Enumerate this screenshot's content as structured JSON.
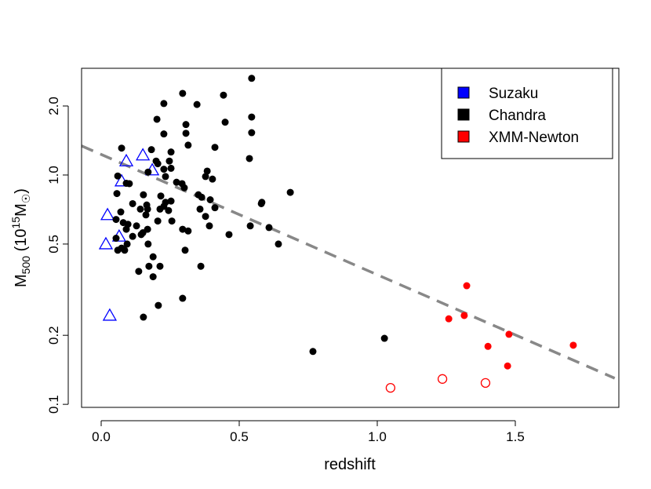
{
  "chart_data": {
    "type": "scatter",
    "xlabel": "redshift",
    "ylabel": {
      "main": "M",
      "sub": "500",
      "unit_open": " (10",
      "unit_exp": "15",
      "unit_mid": "M",
      "unit_sub": "☉",
      "unit_close": ")"
    },
    "xlim": [
      -0.071,
      1.875
    ],
    "ylim": [
      0.097,
      2.92
    ],
    "yscale": "log",
    "x_ticks": [
      "0.0",
      "0.5",
      "1.0",
      "1.5"
    ],
    "y_ticks": [
      "0.1",
      "0.2",
      "0.5",
      "1.0",
      "2.0"
    ],
    "grid": false,
    "legend": {
      "placement": "top-right",
      "entries": [
        {
          "label": "Suzaku",
          "color": "#0000ff"
        },
        {
          "label": "Chandra",
          "color": "#000000"
        },
        {
          "label": "XMM-Newton",
          "color": "#ff0000"
        }
      ]
    },
    "trend_line": {
      "color": "#888888",
      "style": "dashed",
      "x": [
        -0.071,
        1.86
      ],
      "y": [
        1.34,
        0.13
      ]
    },
    "series": [
      {
        "name": "Suzaku",
        "marker": "open-triangle",
        "color": "#0000ff",
        "points": [
          [
            0.023,
            0.67
          ],
          [
            0.017,
            0.5
          ],
          [
            0.065,
            0.54
          ],
          [
            0.031,
            0.244
          ],
          [
            0.074,
            0.94
          ],
          [
            0.091,
            1.15
          ],
          [
            0.151,
            1.22
          ],
          [
            0.185,
            1.05
          ]
        ]
      },
      {
        "name": "Chandra",
        "marker": "filled-circle",
        "color": "#000000",
        "points": [
          [
            0.545,
            2.64
          ],
          [
            0.295,
            2.27
          ],
          [
            0.443,
            2.23
          ],
          [
            0.227,
            2.05
          ],
          [
            0.347,
            2.03
          ],
          [
            0.545,
            1.79
          ],
          [
            0.202,
            1.75
          ],
          [
            0.307,
            1.66
          ],
          [
            0.449,
            1.7
          ],
          [
            0.307,
            1.52
          ],
          [
            0.227,
            1.51
          ],
          [
            0.545,
            1.53
          ],
          [
            0.315,
            1.35
          ],
          [
            0.412,
            1.32
          ],
          [
            0.074,
            1.31
          ],
          [
            0.182,
            1.29
          ],
          [
            0.253,
            1.26
          ],
          [
            0.537,
            1.18
          ],
          [
            0.199,
            1.15
          ],
          [
            0.247,
            1.15
          ],
          [
            0.205,
            1.12
          ],
          [
            0.253,
            1.07
          ],
          [
            0.227,
            1.06
          ],
          [
            0.17,
            1.03
          ],
          [
            0.384,
            1.04
          ],
          [
            0.233,
            0.985
          ],
          [
            0.378,
            0.985
          ],
          [
            0.06,
            0.99
          ],
          [
            0.403,
            0.96
          ],
          [
            0.091,
            0.92
          ],
          [
            0.102,
            0.917
          ],
          [
            0.273,
            0.93
          ],
          [
            0.293,
            0.917
          ],
          [
            0.301,
            0.88
          ],
          [
            0.057,
            0.83
          ],
          [
            0.153,
            0.82
          ],
          [
            0.216,
            0.81
          ],
          [
            0.352,
            0.82
          ],
          [
            0.364,
            0.8
          ],
          [
            0.395,
            0.78
          ],
          [
            0.253,
            0.77
          ],
          [
            0.233,
            0.76
          ],
          [
            0.114,
            0.75
          ],
          [
            0.165,
            0.74
          ],
          [
            0.227,
            0.73
          ],
          [
            0.412,
            0.72
          ],
          [
            0.142,
            0.71
          ],
          [
            0.168,
            0.71
          ],
          [
            0.213,
            0.71
          ],
          [
            0.358,
            0.71
          ],
          [
            0.582,
            0.76
          ],
          [
            0.58,
            0.75
          ],
          [
            0.071,
            0.69
          ],
          [
            0.244,
            0.7
          ],
          [
            0.162,
            0.67
          ],
          [
            0.378,
            0.66
          ],
          [
            0.054,
            0.64
          ],
          [
            0.08,
            0.62
          ],
          [
            0.097,
            0.61
          ],
          [
            0.091,
            0.58
          ],
          [
            0.128,
            0.6
          ],
          [
            0.168,
            0.58
          ],
          [
            0.151,
            0.56
          ],
          [
            0.145,
            0.55
          ],
          [
            0.114,
            0.54
          ],
          [
            0.205,
            0.63
          ],
          [
            0.256,
            0.63
          ],
          [
            0.295,
            0.58
          ],
          [
            0.315,
            0.57
          ],
          [
            0.392,
            0.6
          ],
          [
            0.463,
            0.55
          ],
          [
            0.54,
            0.6
          ],
          [
            0.608,
            0.59
          ],
          [
            0.642,
            0.5
          ],
          [
            0.054,
            0.53
          ],
          [
            0.094,
            0.5
          ],
          [
            0.074,
            0.48
          ],
          [
            0.06,
            0.47
          ],
          [
            0.085,
            0.47
          ],
          [
            0.17,
            0.5
          ],
          [
            0.304,
            0.47
          ],
          [
            0.188,
            0.44
          ],
          [
            0.173,
            0.4
          ],
          [
            0.213,
            0.4
          ],
          [
            0.136,
            0.38
          ],
          [
            0.188,
            0.36
          ],
          [
            0.361,
            0.4
          ],
          [
            0.295,
            0.29
          ],
          [
            0.207,
            0.27
          ],
          [
            0.153,
            0.24
          ],
          [
            0.767,
            0.17
          ],
          [
            1.026,
            0.194
          ],
          [
            0.685,
            0.84
          ]
        ]
      },
      {
        "name": "XMM-Newton",
        "marker": "filled-circle",
        "color": "#ff0000",
        "points": [
          [
            1.324,
            0.329
          ],
          [
            1.259,
            0.236
          ],
          [
            1.315,
            0.244
          ],
          [
            1.401,
            0.179
          ],
          [
            1.477,
            0.202
          ],
          [
            1.472,
            0.147
          ],
          [
            1.71,
            0.181
          ]
        ]
      },
      {
        "name": "XMM-Newton",
        "marker": "open-circle",
        "color": "#ff0000",
        "points": [
          [
            1.048,
            0.118
          ],
          [
            1.236,
            0.129
          ],
          [
            1.392,
            0.124
          ]
        ]
      }
    ]
  }
}
